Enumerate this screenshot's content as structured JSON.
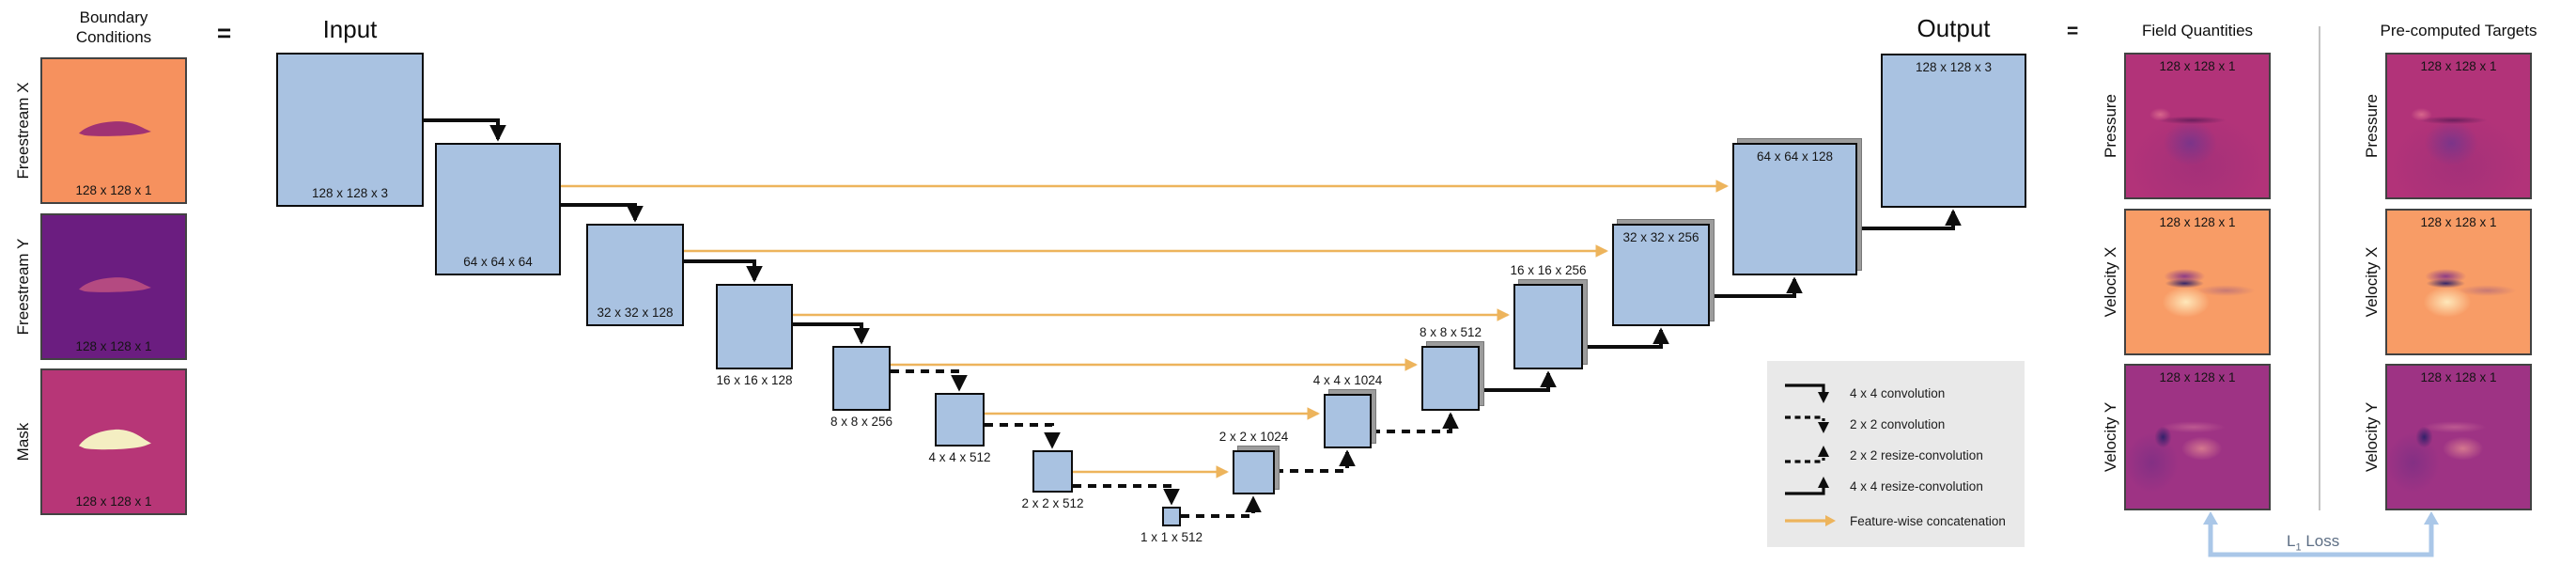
{
  "boundary": {
    "title_line1": "Boundary",
    "title_line2": "Conditions",
    "panels": [
      {
        "label": "Freestream X",
        "dims": "128 x 128 x 1"
      },
      {
        "label": "Freestream Y",
        "dims": "128 x 128 x 1"
      },
      {
        "label": "Mask",
        "dims": "128 x 128 x 1"
      }
    ]
  },
  "equals_left": "=",
  "equals_right": "=",
  "unet": {
    "input_title": "Input",
    "output_title": "Output",
    "blocks": [
      {
        "id": "encoder-128",
        "dims": "128 x 128 x 3"
      },
      {
        "id": "encoder-64",
        "dims": "64 x 64 x 64"
      },
      {
        "id": "encoder-32",
        "dims": "32 x 32 x 128"
      },
      {
        "id": "encoder-16",
        "dims": "16 x 16 x 128"
      },
      {
        "id": "encoder-8",
        "dims": "8 x 8 x 256"
      },
      {
        "id": "encoder-4",
        "dims": "4 x 4 x 512"
      },
      {
        "id": "encoder-2",
        "dims": "2 x 2 x 512"
      },
      {
        "id": "bottleneck-1",
        "dims": "1 x 1 x 512"
      },
      {
        "id": "decoder-2",
        "dims": "2 x 2 x 1024"
      },
      {
        "id": "decoder-4",
        "dims": "4 x 4 x 1024"
      },
      {
        "id": "decoder-8",
        "dims": "8 x 8 x 512"
      },
      {
        "id": "decoder-16",
        "dims": "16 x 16 x 256"
      },
      {
        "id": "decoder-32",
        "dims": "32 x 32 x 256"
      },
      {
        "id": "decoder-64",
        "dims": "64 x 64 x 128"
      },
      {
        "id": "output-128",
        "dims": "128 x 128 x 3"
      }
    ]
  },
  "legend": {
    "items": [
      {
        "type": "conv4",
        "label": "4 x 4 convolution"
      },
      {
        "type": "conv2",
        "label": "2 x 2 convolution"
      },
      {
        "type": "resize2",
        "label": "2 x 2 resize-convolution"
      },
      {
        "type": "resize4",
        "label": "4 x 4 resize-convolution"
      },
      {
        "type": "concat",
        "label": "Feature-wise concatenation"
      }
    ]
  },
  "field_quantities": {
    "title": "Field Quantities",
    "rows": [
      {
        "label": "Pressure",
        "dims": "128 x 128 x 1"
      },
      {
        "label": "Velocity X",
        "dims": "128 x 128 x 1"
      },
      {
        "label": "Velocity Y",
        "dims": "128 x 128 x 1"
      }
    ]
  },
  "targets": {
    "title": "Pre-computed Targets",
    "rows": [
      {
        "label": "Pressure",
        "dims": "128 x 128 x 1"
      },
      {
        "label": "Velocity X",
        "dims": "128 x 128 x 1"
      },
      {
        "label": "Velocity Y",
        "dims": "128 x 128 x 1"
      }
    ]
  },
  "loss": {
    "prefix": "L",
    "sub": "1",
    "suffix": " Loss"
  },
  "colors": {
    "block_fill": "#a9c2e1",
    "skip_orange": "#edb45c",
    "loss_blue": "#aac7e8",
    "legend_bg": "#e9e9e9",
    "freestream_x_bg": "#f6915e",
    "freestream_y_bg": "#6b1d80",
    "mask_bg": "#b73677"
  }
}
